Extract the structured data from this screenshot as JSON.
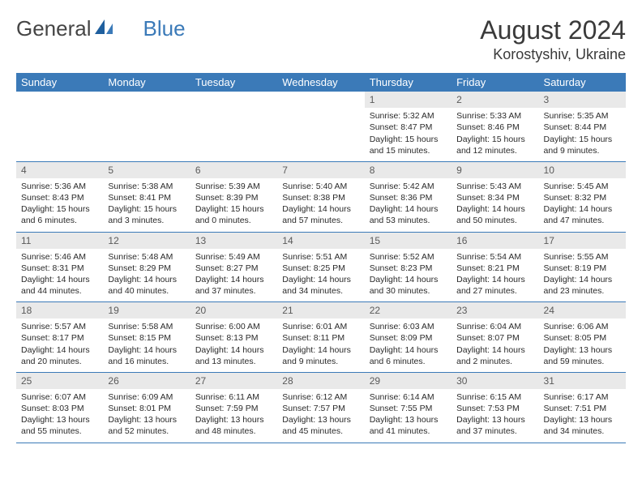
{
  "logo": {
    "text1": "General",
    "text2": "Blue"
  },
  "title": "August 2024",
  "location": "Korostyshiv, Ukraine",
  "dayHeaders": [
    "Sunday",
    "Monday",
    "Tuesday",
    "Wednesday",
    "Thursday",
    "Friday",
    "Saturday"
  ],
  "colors": {
    "headerBg": "#3b7ab8",
    "headerText": "#ffffff",
    "dayNumBg": "#e9e9e9",
    "rowBorder": "#3b7ab8"
  },
  "weeks": [
    [
      null,
      null,
      null,
      null,
      {
        "n": "1",
        "sr": "Sunrise: 5:32 AM",
        "ss": "Sunset: 8:47 PM",
        "dl": "Daylight: 15 hours and 15 minutes."
      },
      {
        "n": "2",
        "sr": "Sunrise: 5:33 AM",
        "ss": "Sunset: 8:46 PM",
        "dl": "Daylight: 15 hours and 12 minutes."
      },
      {
        "n": "3",
        "sr": "Sunrise: 5:35 AM",
        "ss": "Sunset: 8:44 PM",
        "dl": "Daylight: 15 hours and 9 minutes."
      }
    ],
    [
      {
        "n": "4",
        "sr": "Sunrise: 5:36 AM",
        "ss": "Sunset: 8:43 PM",
        "dl": "Daylight: 15 hours and 6 minutes."
      },
      {
        "n": "5",
        "sr": "Sunrise: 5:38 AM",
        "ss": "Sunset: 8:41 PM",
        "dl": "Daylight: 15 hours and 3 minutes."
      },
      {
        "n": "6",
        "sr": "Sunrise: 5:39 AM",
        "ss": "Sunset: 8:39 PM",
        "dl": "Daylight: 15 hours and 0 minutes."
      },
      {
        "n": "7",
        "sr": "Sunrise: 5:40 AM",
        "ss": "Sunset: 8:38 PM",
        "dl": "Daylight: 14 hours and 57 minutes."
      },
      {
        "n": "8",
        "sr": "Sunrise: 5:42 AM",
        "ss": "Sunset: 8:36 PM",
        "dl": "Daylight: 14 hours and 53 minutes."
      },
      {
        "n": "9",
        "sr": "Sunrise: 5:43 AM",
        "ss": "Sunset: 8:34 PM",
        "dl": "Daylight: 14 hours and 50 minutes."
      },
      {
        "n": "10",
        "sr": "Sunrise: 5:45 AM",
        "ss": "Sunset: 8:32 PM",
        "dl": "Daylight: 14 hours and 47 minutes."
      }
    ],
    [
      {
        "n": "11",
        "sr": "Sunrise: 5:46 AM",
        "ss": "Sunset: 8:31 PM",
        "dl": "Daylight: 14 hours and 44 minutes."
      },
      {
        "n": "12",
        "sr": "Sunrise: 5:48 AM",
        "ss": "Sunset: 8:29 PM",
        "dl": "Daylight: 14 hours and 40 minutes."
      },
      {
        "n": "13",
        "sr": "Sunrise: 5:49 AM",
        "ss": "Sunset: 8:27 PM",
        "dl": "Daylight: 14 hours and 37 minutes."
      },
      {
        "n": "14",
        "sr": "Sunrise: 5:51 AM",
        "ss": "Sunset: 8:25 PM",
        "dl": "Daylight: 14 hours and 34 minutes."
      },
      {
        "n": "15",
        "sr": "Sunrise: 5:52 AM",
        "ss": "Sunset: 8:23 PM",
        "dl": "Daylight: 14 hours and 30 minutes."
      },
      {
        "n": "16",
        "sr": "Sunrise: 5:54 AM",
        "ss": "Sunset: 8:21 PM",
        "dl": "Daylight: 14 hours and 27 minutes."
      },
      {
        "n": "17",
        "sr": "Sunrise: 5:55 AM",
        "ss": "Sunset: 8:19 PM",
        "dl": "Daylight: 14 hours and 23 minutes."
      }
    ],
    [
      {
        "n": "18",
        "sr": "Sunrise: 5:57 AM",
        "ss": "Sunset: 8:17 PM",
        "dl": "Daylight: 14 hours and 20 minutes."
      },
      {
        "n": "19",
        "sr": "Sunrise: 5:58 AM",
        "ss": "Sunset: 8:15 PM",
        "dl": "Daylight: 14 hours and 16 minutes."
      },
      {
        "n": "20",
        "sr": "Sunrise: 6:00 AM",
        "ss": "Sunset: 8:13 PM",
        "dl": "Daylight: 14 hours and 13 minutes."
      },
      {
        "n": "21",
        "sr": "Sunrise: 6:01 AM",
        "ss": "Sunset: 8:11 PM",
        "dl": "Daylight: 14 hours and 9 minutes."
      },
      {
        "n": "22",
        "sr": "Sunrise: 6:03 AM",
        "ss": "Sunset: 8:09 PM",
        "dl": "Daylight: 14 hours and 6 minutes."
      },
      {
        "n": "23",
        "sr": "Sunrise: 6:04 AM",
        "ss": "Sunset: 8:07 PM",
        "dl": "Daylight: 14 hours and 2 minutes."
      },
      {
        "n": "24",
        "sr": "Sunrise: 6:06 AM",
        "ss": "Sunset: 8:05 PM",
        "dl": "Daylight: 13 hours and 59 minutes."
      }
    ],
    [
      {
        "n": "25",
        "sr": "Sunrise: 6:07 AM",
        "ss": "Sunset: 8:03 PM",
        "dl": "Daylight: 13 hours and 55 minutes."
      },
      {
        "n": "26",
        "sr": "Sunrise: 6:09 AM",
        "ss": "Sunset: 8:01 PM",
        "dl": "Daylight: 13 hours and 52 minutes."
      },
      {
        "n": "27",
        "sr": "Sunrise: 6:11 AM",
        "ss": "Sunset: 7:59 PM",
        "dl": "Daylight: 13 hours and 48 minutes."
      },
      {
        "n": "28",
        "sr": "Sunrise: 6:12 AM",
        "ss": "Sunset: 7:57 PM",
        "dl": "Daylight: 13 hours and 45 minutes."
      },
      {
        "n": "29",
        "sr": "Sunrise: 6:14 AM",
        "ss": "Sunset: 7:55 PM",
        "dl": "Daylight: 13 hours and 41 minutes."
      },
      {
        "n": "30",
        "sr": "Sunrise: 6:15 AM",
        "ss": "Sunset: 7:53 PM",
        "dl": "Daylight: 13 hours and 37 minutes."
      },
      {
        "n": "31",
        "sr": "Sunrise: 6:17 AM",
        "ss": "Sunset: 7:51 PM",
        "dl": "Daylight: 13 hours and 34 minutes."
      }
    ]
  ]
}
